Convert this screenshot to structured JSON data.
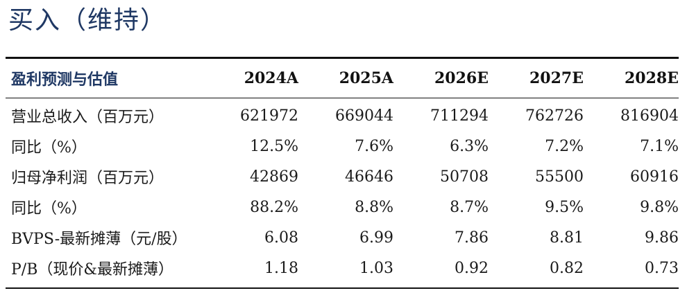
{
  "rating": "买入（维持）",
  "table": {
    "header": {
      "label": "盈利预测与估值",
      "years": [
        "2024A",
        "2025A",
        "2026E",
        "2027E",
        "2028E"
      ]
    },
    "rows": [
      {
        "label": "营业总收入（百万元）",
        "values": [
          "621972",
          "669044",
          "711294",
          "762726",
          "816904"
        ]
      },
      {
        "label": "同比（%）",
        "values": [
          "12.5%",
          "7.6%",
          "6.3%",
          "7.2%",
          "7.1%"
        ]
      },
      {
        "label": "归母净利润（百万元）",
        "values": [
          "42869",
          "46646",
          "50708",
          "55500",
          "60916"
        ]
      },
      {
        "label": "同比（%）",
        "values": [
          "88.2%",
          "8.8%",
          "8.7%",
          "9.5%",
          "9.8%"
        ]
      },
      {
        "label": "BVPS-最新摊薄（元/股）",
        "values": [
          "6.08",
          "6.99",
          "7.86",
          "8.81",
          "9.86"
        ]
      },
      {
        "label": "P/B（现价&最新摊薄）",
        "values": [
          "1.18",
          "1.03",
          "0.92",
          "0.82",
          "0.73"
        ]
      }
    ]
  }
}
